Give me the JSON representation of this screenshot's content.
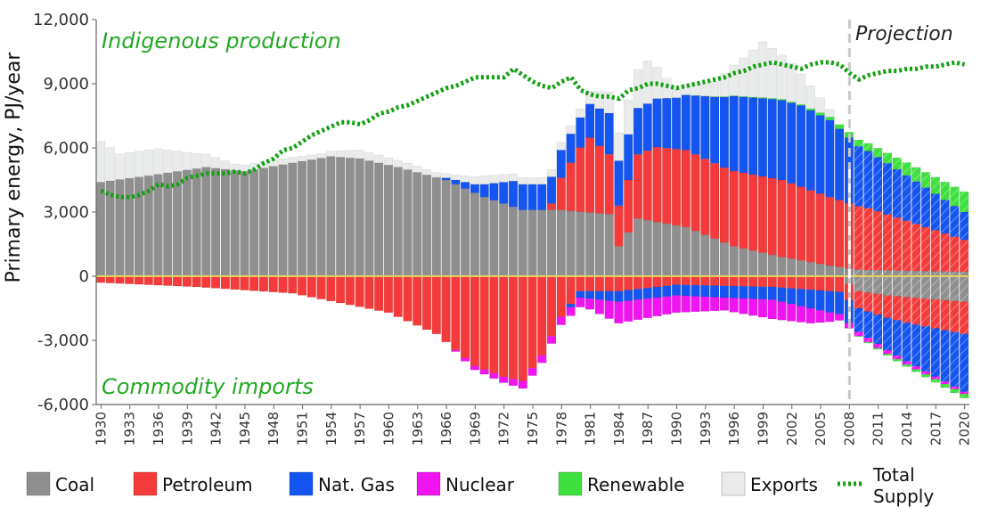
{
  "chart_data": {
    "type": "bar",
    "stacked": true,
    "ylabel": "Primary energy, PJ/year",
    "ylim": [
      -6000,
      12000
    ],
    "yticks": [
      "12,000",
      "9,000",
      "6,000",
      "3,000",
      "0",
      "-3,000",
      "-6,000"
    ],
    "xlim": [
      1930,
      2020
    ],
    "xtick_labels": [
      "1930",
      "1933",
      "1936",
      "1939",
      "1942",
      "1945",
      "1948",
      "1951",
      "1954",
      "1957",
      "1960",
      "1963",
      "1966",
      "1969",
      "1972",
      "1975",
      "1978",
      "1981",
      "1984",
      "1987",
      "1990",
      "1993",
      "1996",
      "1999",
      "2002",
      "2005",
      "2008",
      "2011",
      "2014",
      "2017",
      "2020"
    ],
    "annotations": {
      "positive": "Indigenous production",
      "negative": "Commodity imports",
      "projection": "Projection"
    },
    "projection_start": 2008,
    "colors": {
      "Coal": "#8f8f8f",
      "Petroleum": "#f43a3a",
      "Nat. Gas": "#1454f0",
      "Nuclear": "#f014f0",
      "Renewable": "#3ee03e",
      "Exports": "#e9ecea",
      "Total Supply": "#10a010"
    },
    "legend": [
      "Coal",
      "Petroleum",
      "Nat. Gas",
      "Nuclear",
      "Renewable",
      "Exports",
      "Total Supply"
    ],
    "production_anchors": {
      "Coal": [
        [
          1930,
          4400
        ],
        [
          1935,
          4700
        ],
        [
          1938,
          4900
        ],
        [
          1941,
          5100
        ],
        [
          1945,
          4900
        ],
        [
          1950,
          5300
        ],
        [
          1954,
          5600
        ],
        [
          1957,
          5500
        ],
        [
          1961,
          5100
        ],
        [
          1966,
          4500
        ],
        [
          1970,
          3700
        ],
        [
          1974,
          3100
        ],
        [
          1978,
          3100
        ],
        [
          1983,
          2900
        ],
        [
          1984,
          1400
        ],
        [
          1986,
          2700
        ],
        [
          1991,
          2300
        ],
        [
          1996,
          1400
        ],
        [
          2001,
          900
        ],
        [
          2006,
          500
        ],
        [
          2009,
          300
        ],
        [
          2020,
          200
        ]
      ],
      "Petroleum": [
        [
          1930,
          0
        ],
        [
          1976,
          0
        ],
        [
          1977,
          300
        ],
        [
          1978,
          1500
        ],
        [
          1980,
          3000
        ],
        [
          1981,
          3500
        ],
        [
          1983,
          2800
        ],
        [
          1984,
          1900
        ],
        [
          1986,
          3000
        ],
        [
          1988,
          3500
        ],
        [
          1991,
          3600
        ],
        [
          1995,
          3500
        ],
        [
          2001,
          3600
        ],
        [
          2006,
          3200
        ],
        [
          2010,
          2900
        ],
        [
          2020,
          1500
        ]
      ],
      "Nat. Gas": [
        [
          1930,
          0
        ],
        [
          1965,
          0
        ],
        [
          1967,
          200
        ],
        [
          1969,
          400
        ],
        [
          1973,
          1200
        ],
        [
          1976,
          1200
        ],
        [
          1980,
          1400
        ],
        [
          1984,
          2100
        ],
        [
          1987,
          2200
        ],
        [
          1990,
          2400
        ],
        [
          1994,
          3100
        ],
        [
          1996,
          3500
        ],
        [
          2000,
          3700
        ],
        [
          2003,
          3800
        ],
        [
          2006,
          3600
        ],
        [
          2009,
          2800
        ],
        [
          2020,
          1300
        ]
      ],
      "Renewable": [
        [
          1930,
          0
        ],
        [
          1990,
          0
        ],
        [
          2003,
          50
        ],
        [
          2006,
          150
        ],
        [
          2009,
          300
        ],
        [
          2014,
          600
        ],
        [
          2020,
          950
        ]
      ],
      "Exports": [
        [
          1930,
          1900
        ],
        [
          1932,
          1200
        ],
        [
          1936,
          1200
        ],
        [
          1940,
          700
        ],
        [
          1944,
          300
        ],
        [
          1948,
          300
        ],
        [
          1953,
          200
        ],
        [
          1957,
          400
        ],
        [
          1962,
          300
        ],
        [
          1966,
          200
        ],
        [
          1970,
          400
        ],
        [
          1975,
          300
        ],
        [
          1980,
          400
        ],
        [
          1983,
          1000
        ],
        [
          1985,
          1600
        ],
        [
          1987,
          2000
        ],
        [
          1990,
          400
        ],
        [
          1994,
          700
        ],
        [
          1997,
          1800
        ],
        [
          1999,
          2600
        ],
        [
          2002,
          1800
        ],
        [
          2005,
          700
        ],
        [
          2007,
          0
        ],
        [
          2020,
          0
        ]
      ]
    },
    "import_anchors": {
      "Coal": [
        [
          1930,
          0
        ],
        [
          2007,
          0
        ],
        [
          2009,
          -700
        ],
        [
          2012,
          -900
        ],
        [
          2020,
          -1200
        ]
      ],
      "Petroleum": [
        [
          1930,
          -300
        ],
        [
          1940,
          -500
        ],
        [
          1950,
          -800
        ],
        [
          1960,
          -1700
        ],
        [
          1965,
          -2700
        ],
        [
          1969,
          -4200
        ],
        [
          1972,
          -4700
        ],
        [
          1974,
          -4900
        ],
        [
          1976,
          -3700
        ],
        [
          1978,
          -1900
        ],
        [
          1980,
          -700
        ],
        [
          1984,
          -700
        ],
        [
          1990,
          -400
        ],
        [
          2000,
          -500
        ],
        [
          2006,
          -700
        ],
        [
          2009,
          -800
        ],
        [
          2014,
          -1200
        ],
        [
          2020,
          -1500
        ]
      ],
      "Nat. Gas": [
        [
          1930,
          0
        ],
        [
          1978,
          0
        ],
        [
          1980,
          -300
        ],
        [
          1984,
          -500
        ],
        [
          1990,
          -500
        ],
        [
          2000,
          -600
        ],
        [
          2006,
          -1000
        ],
        [
          2009,
          -1100
        ],
        [
          2014,
          -1800
        ],
        [
          2020,
          -2700
        ]
      ],
      "Nuclear": [
        [
          1930,
          0
        ],
        [
          1966,
          0
        ],
        [
          1968,
          -150
        ],
        [
          1974,
          -350
        ],
        [
          1977,
          -350
        ],
        [
          1979,
          -400
        ],
        [
          1981,
          -500
        ],
        [
          1984,
          -1000
        ],
        [
          1990,
          -800
        ],
        [
          1995,
          -600
        ],
        [
          2000,
          -900
        ],
        [
          2004,
          -700
        ],
        [
          2007,
          -300
        ],
        [
          2009,
          -200
        ],
        [
          2020,
          -100
        ]
      ],
      "Renewable": [
        [
          1930,
          0
        ],
        [
          2008,
          0
        ],
        [
          2010,
          -50
        ],
        [
          2014,
          -100
        ],
        [
          2020,
          -200
        ]
      ]
    },
    "total_supply": [
      [
        1930,
        4000
      ],
      [
        1931,
        3800
      ],
      [
        1932,
        3700
      ],
      [
        1933,
        3700
      ],
      [
        1934,
        3800
      ],
      [
        1935,
        4000
      ],
      [
        1936,
        4300
      ],
      [
        1937,
        4200
      ],
      [
        1938,
        4300
      ],
      [
        1939,
        4600
      ],
      [
        1940,
        4700
      ],
      [
        1941,
        4800
      ],
      [
        1942,
        4800
      ],
      [
        1943,
        4800
      ],
      [
        1944,
        4900
      ],
      [
        1945,
        4800
      ],
      [
        1946,
        5000
      ],
      [
        1947,
        5300
      ],
      [
        1948,
        5500
      ],
      [
        1949,
        5900
      ],
      [
        1950,
        6000
      ],
      [
        1951,
        6300
      ],
      [
        1952,
        6600
      ],
      [
        1953,
        6800
      ],
      [
        1954,
        7000
      ],
      [
        1955,
        7200
      ],
      [
        1956,
        7200
      ],
      [
        1957,
        7100
      ],
      [
        1958,
        7300
      ],
      [
        1959,
        7600
      ],
      [
        1960,
        7700
      ],
      [
        1961,
        7900
      ],
      [
        1962,
        8000
      ],
      [
        1963,
        8200
      ],
      [
        1964,
        8400
      ],
      [
        1965,
        8600
      ],
      [
        1966,
        8800
      ],
      [
        1967,
        8900
      ],
      [
        1968,
        9100
      ],
      [
        1969,
        9300
      ],
      [
        1970,
        9300
      ],
      [
        1971,
        9300
      ],
      [
        1972,
        9300
      ],
      [
        1973,
        9700
      ],
      [
        1974,
        9400
      ],
      [
        1975,
        9100
      ],
      [
        1976,
        8900
      ],
      [
        1977,
        8800
      ],
      [
        1978,
        9100
      ],
      [
        1979,
        9300
      ],
      [
        1980,
        8700
      ],
      [
        1981,
        8500
      ],
      [
        1982,
        8400
      ],
      [
        1983,
        8400
      ],
      [
        1984,
        8300
      ],
      [
        1985,
        8700
      ],
      [
        1986,
        8800
      ],
      [
        1987,
        9000
      ],
      [
        1988,
        9000
      ],
      [
        1989,
        8900
      ],
      [
        1990,
        8800
      ],
      [
        1991,
        8900
      ],
      [
        1992,
        9000
      ],
      [
        1993,
        9100
      ],
      [
        1994,
        9200
      ],
      [
        1995,
        9300
      ],
      [
        1996,
        9500
      ],
      [
        1997,
        9600
      ],
      [
        1998,
        9800
      ],
      [
        1999,
        9900
      ],
      [
        2000,
        10000
      ],
      [
        2001,
        9900
      ],
      [
        2002,
        9800
      ],
      [
        2003,
        9700
      ],
      [
        2004,
        9900
      ],
      [
        2005,
        10000
      ],
      [
        2006,
        10000
      ],
      [
        2007,
        9900
      ],
      [
        2008,
        9500
      ],
      [
        2009,
        9200
      ],
      [
        2010,
        9400
      ],
      [
        2011,
        9500
      ],
      [
        2012,
        9600
      ],
      [
        2013,
        9600
      ],
      [
        2014,
        9700
      ],
      [
        2015,
        9700
      ],
      [
        2016,
        9800
      ],
      [
        2017,
        9800
      ],
      [
        2018,
        9900
      ],
      [
        2019,
        10000
      ],
      [
        2020,
        9900
      ]
    ]
  }
}
